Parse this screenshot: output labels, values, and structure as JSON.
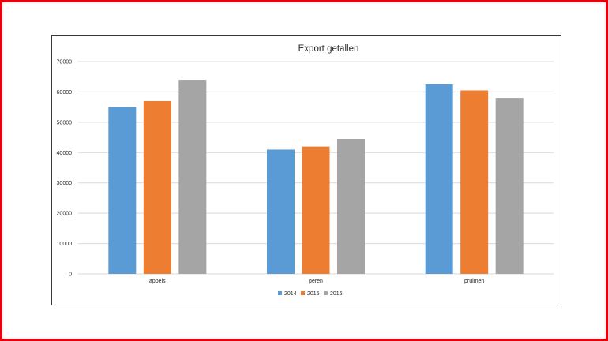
{
  "chart_data": {
    "type": "bar",
    "title": "Export getallen",
    "xlabel": "",
    "ylabel": "",
    "categories": [
      "appels",
      "peren",
      "pruimen"
    ],
    "series": [
      {
        "name": "2014",
        "color": "#5b9bd5",
        "values": [
          55000,
          41000,
          62500
        ]
      },
      {
        "name": "2015",
        "color": "#ed7d31",
        "values": [
          57000,
          42000,
          60500
        ]
      },
      {
        "name": "2016",
        "color": "#a5a5a5",
        "values": [
          64000,
          44500,
          58000
        ]
      }
    ],
    "ylim": [
      0,
      70000
    ],
    "yticks": [
      "0",
      "10000",
      "20000",
      "30000",
      "40000",
      "50000",
      "60000",
      "70000"
    ],
    "grid": true,
    "legend_position": "bottom"
  },
  "colors": {
    "frame_border": "#e8000b",
    "gridline": "#d9d9d9"
  }
}
